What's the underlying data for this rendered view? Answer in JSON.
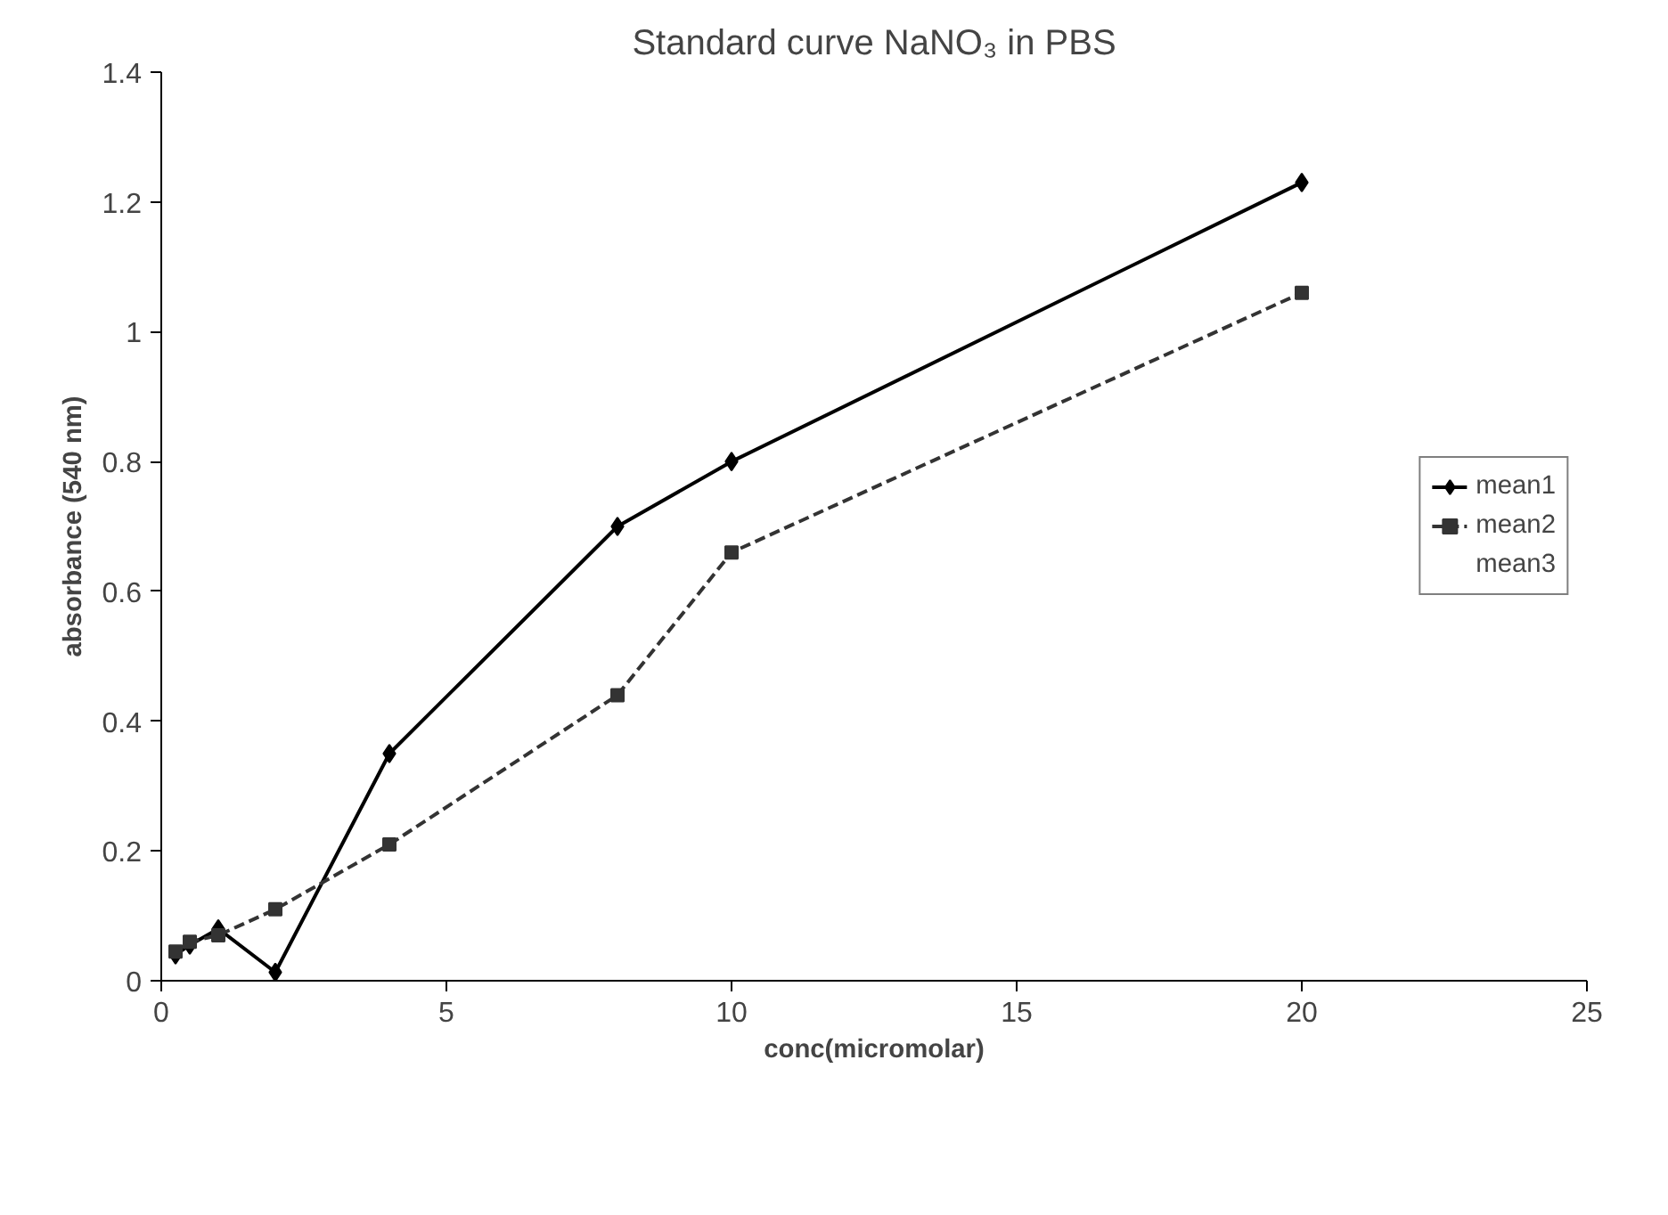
{
  "chart_data": {
    "type": "line",
    "title": "Standard curve NaNO₃ in PBS",
    "xlabel": "conc(micromolar)",
    "ylabel": "absorbance (540 nm)",
    "x": [
      0.25,
      0.5,
      1,
      2,
      4,
      8,
      10,
      20
    ],
    "series": [
      {
        "name": "mean1",
        "color": "#000000",
        "marker": "diamond",
        "line_style": "solid",
        "values": [
          0.04,
          0.055,
          0.08,
          0.013,
          0.35,
          0.7,
          0.8,
          1.23
        ]
      },
      {
        "name": "mean2",
        "color": "#333333",
        "marker": "square",
        "line_style": "dashed",
        "values": [
          0.045,
          0.06,
          0.07,
          0.11,
          0.21,
          0.44,
          0.66,
          1.06
        ]
      },
      {
        "name": "mean3",
        "marker": "none",
        "line_style": "solid",
        "values": [
          null,
          null,
          null,
          null,
          null,
          null,
          null,
          null
        ]
      }
    ],
    "xlim": [
      0,
      25
    ],
    "xticks": [
      0,
      5,
      10,
      15,
      20,
      25
    ],
    "ylim": [
      0,
      1.4
    ],
    "yticks": [
      0,
      0.2,
      0.4,
      0.6,
      0.8,
      1,
      1.2,
      1.4
    ],
    "grid": false,
    "legend": "right"
  }
}
